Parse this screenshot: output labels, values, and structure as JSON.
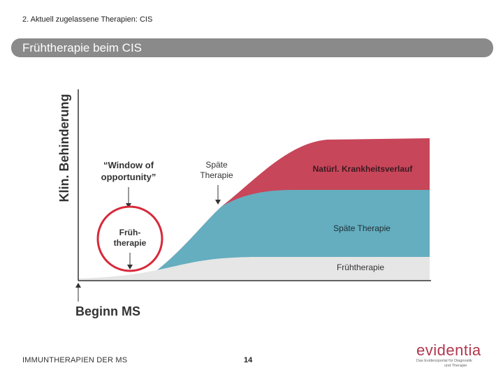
{
  "header": {
    "breadcrumb": "2. Aktuell zugelassene Therapien: CIS",
    "title": "Frühtherapie beim CIS"
  },
  "diagram": {
    "y_axis_label": "Klin. Behinderung",
    "x_axis_label": "Beginn MS",
    "annotations": {
      "window_line1": "“Window of",
      "window_line2": "opportunity”",
      "spaete_line1": "Späte",
      "spaete_line2": "Therapie",
      "frueh_line1": "Früh-",
      "frueh_line2": "therapie"
    },
    "bands": {
      "natural": "Natürl. Krankheitsverlauf",
      "late": "Späte Therapie",
      "early": "Frühtherapie"
    },
    "colors": {
      "natural": "#c8465a",
      "late": "#64aebf",
      "early": "#e6e6e6",
      "circle": "#d8283a"
    }
  },
  "footer": {
    "left": "IMMUNTHERAPIEN DER MS",
    "page": "14"
  },
  "logo": {
    "word": "evidentia",
    "tagline1": "Das Evidenzportal für Diagnostik",
    "tagline2": "und Therapie"
  }
}
